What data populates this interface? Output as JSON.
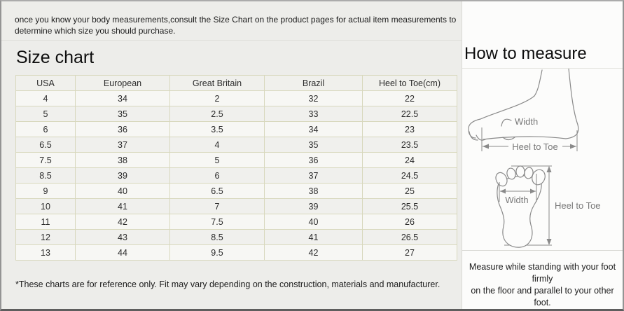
{
  "intro": {
    "line1": "once you know your body measurements,consult the Size Chart on the product pages for actual item measurements to",
    "line2": "determine which size you should purchase."
  },
  "size_chart": {
    "title": "Size chart",
    "table": {
      "headers": [
        "USA",
        "European",
        "Great Britain",
        "Brazil",
        "Heel to Toe(cm)"
      ],
      "rows": [
        [
          "4",
          "34",
          "2",
          "32",
          "22"
        ],
        [
          "5",
          "35",
          "2.5",
          "33",
          "22.5"
        ],
        [
          "6",
          "36",
          "3.5",
          "34",
          "23"
        ],
        [
          "6.5",
          "37",
          "4",
          "35",
          "23.5"
        ],
        [
          "7.5",
          "38",
          "5",
          "36",
          "24"
        ],
        [
          "8.5",
          "39",
          "6",
          "37",
          "24.5"
        ],
        [
          "9",
          "40",
          "6.5",
          "38",
          "25"
        ],
        [
          "10",
          "41",
          "7",
          "39",
          "25.5"
        ],
        [
          "11",
          "42",
          "7.5",
          "40",
          "26"
        ],
        [
          "12",
          "43",
          "8.5",
          "41",
          "26.5"
        ],
        [
          "13",
          "44",
          "9.5",
          "42",
          "27"
        ]
      ]
    },
    "note": "*These charts are for reference only. Fit may vary depending on the construction, materials and manufacturer."
  },
  "how_to_measure": {
    "title": "How to measure",
    "side_view": {
      "width_label": "Width",
      "heel_to_toe_label": "Heel to Toe"
    },
    "bottom_view": {
      "width_label": "Width",
      "heel_to_toe_label": "Heel to Toe"
    },
    "instruction_line1": "Measure while standing with your foot firmly",
    "instruction_line2": "on the floor and parallel to your other foot."
  },
  "colors": {
    "page_background": "#ededea",
    "right_panel_background": "#fcfcfb",
    "table_border": "#d8d8bd",
    "table_row_alt": "#f0f0ed",
    "outer_border": "#949494",
    "bottom_border": "#5e5e5e",
    "diagram_stroke": "#8a8a8a",
    "text": "#1c1c1c"
  }
}
